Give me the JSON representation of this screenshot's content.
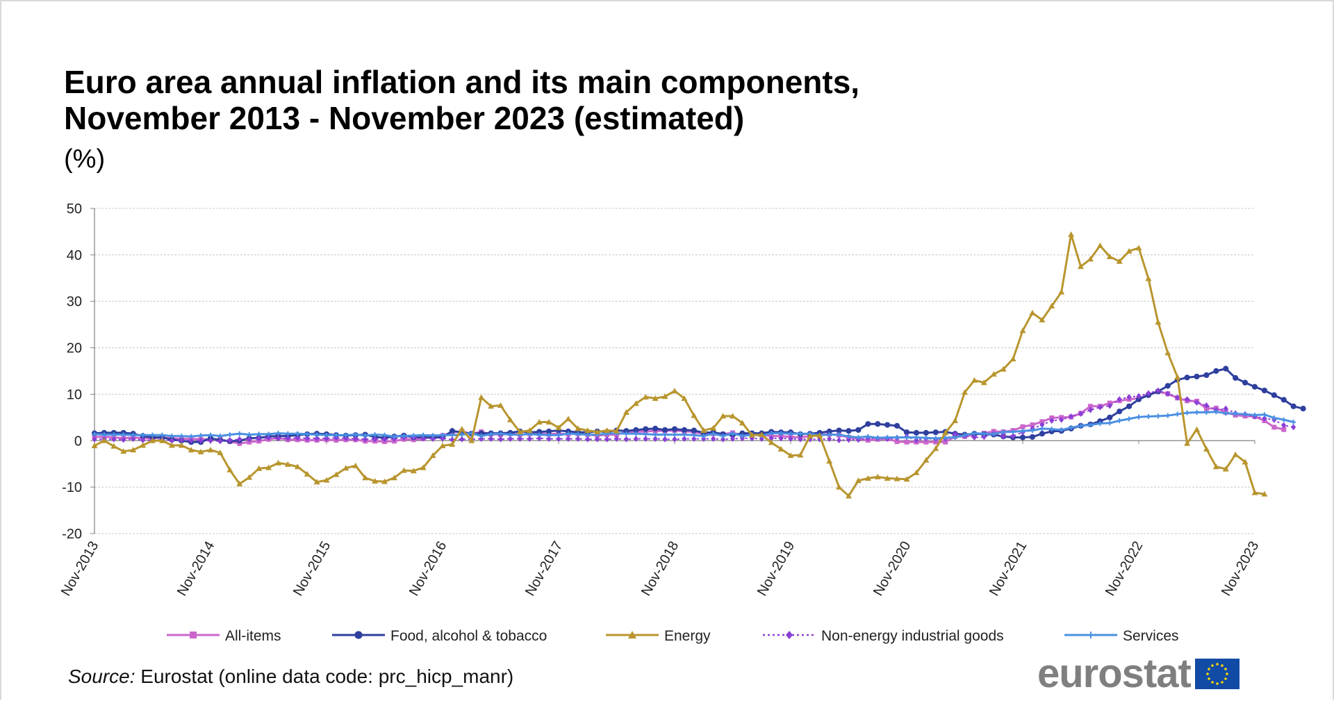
{
  "source_prefix": "Source:",
  "source_text": "Eurostat (online data code: prc_hicp_manr)",
  "logo_text": "eurostat",
  "chart_data": {
    "type": "line",
    "title": "Euro area annual inflation and its main components,",
    "title_line2": "November 2013 - November 2023 (estimated)",
    "subtitle": "(%)",
    "ylim": [
      -20,
      50
    ],
    "yticks": [
      -20,
      -10,
      0,
      10,
      20,
      30,
      40,
      50
    ],
    "x_tick_labels": [
      "Nov-2013",
      "Nov-2014",
      "Nov-2015",
      "Nov-2016",
      "Nov-2017",
      "Nov-2018",
      "Nov-2019",
      "Nov-2020",
      "Nov-2021",
      "Nov-2022",
      "Nov-2023"
    ],
    "x_points": 121,
    "grid": true,
    "legend_position": "bottom",
    "series": [
      {
        "name": "All-items",
        "color": "#cc66cc",
        "marker": "square",
        "dash": false,
        "values": [
          0.8,
          0.8,
          0.7,
          0.5,
          0.7,
          0.5,
          0.5,
          0.7,
          0.5,
          0.4,
          0.4,
          0.3,
          0.3,
          0.3,
          -0.2,
          -0.6,
          -0.3,
          -0.1,
          0.3,
          0.6,
          0.2,
          0.2,
          0.1,
          0.1,
          0.2,
          0.1,
          0.2,
          0.2,
          -0.1,
          -0.1,
          -0.2,
          -0.1,
          0.3,
          0.2,
          0.4,
          0.9,
          1.1,
          1.8,
          2.0,
          1.5,
          1.9,
          1.4,
          1.3,
          1.5,
          1.3,
          1.5,
          1.5,
          1.4,
          1.5,
          1.4,
          1.5,
          1.3,
          1.1,
          1.3,
          1.3,
          1.9,
          1.9,
          2.0,
          2.1,
          2.1,
          2.2,
          2.0,
          1.9,
          1.4,
          1.5,
          1.4,
          1.7,
          1.2,
          1.4,
          1.3,
          1.0,
          1.0,
          0.8,
          0.7,
          1.0,
          1.3,
          1.4,
          1.2,
          0.7,
          0.4,
          0.1,
          0.3,
          0.4,
          -0.2,
          -0.3,
          -0.3,
          -0.3,
          -0.3,
          -0.3,
          0.9,
          0.9,
          1.3,
          1.6,
          2.0,
          1.9,
          2.2,
          3.0,
          3.4,
          4.1,
          4.9,
          5.0,
          5.1,
          5.9,
          7.4,
          7.4,
          8.1,
          8.6,
          8.9,
          9.1,
          9.9,
          10.6,
          10.1,
          9.2,
          8.6,
          8.5,
          6.9,
          7.0,
          6.1,
          5.5,
          5.3,
          5.2,
          4.3,
          2.9,
          2.4
        ]
      },
      {
        "name": "Food, alcohol & tobacco",
        "color": "#2e3f9e",
        "marker": "circle",
        "dash": false,
        "values": [
          1.6,
          1.7,
          1.7,
          1.7,
          1.5,
          1.0,
          0.7,
          0.7,
          0.2,
          0.0,
          -0.3,
          -0.3,
          0.5,
          0.1,
          -0.1,
          0.0,
          0.5,
          0.6,
          0.9,
          1.0,
          1.0,
          1.2,
          1.4,
          1.5,
          1.4,
          1.2,
          1.1,
          1.2,
          1.3,
          0.8,
          0.6,
          0.9,
          1.1,
          0.7,
          0.7,
          0.7,
          0.7,
          2.1,
          1.8,
          1.5,
          1.6,
          1.6,
          1.6,
          1.7,
          2.0,
          1.8,
          1.9,
          2.0,
          2.2,
          2.0,
          1.8,
          1.8,
          2.0,
          1.9,
          2.2,
          2.1,
          2.3,
          2.5,
          2.6,
          2.3,
          2.5,
          2.3,
          2.2,
          1.7,
          1.8,
          1.4,
          1.2,
          1.6,
          1.6,
          1.6,
          1.9,
          1.8,
          1.8,
          1.4,
          1.5,
          1.7,
          2.0,
          2.2,
          2.1,
          2.3,
          3.6,
          3.6,
          3.4,
          3.2,
          1.8,
          1.7,
          1.7,
          1.8,
          1.9,
          1.5,
          1.3,
          1.5,
          1.4,
          1.3,
          0.9,
          0.7,
          0.7,
          0.8,
          1.5,
          2.0,
          2.1,
          2.6,
          3.2,
          3.5,
          4.2,
          5.0,
          6.3,
          7.4,
          8.9,
          9.8,
          10.6,
          11.8,
          13.1,
          13.6,
          13.8,
          14.1,
          15.0,
          15.5,
          13.5,
          12.5,
          11.6,
          10.8,
          9.8,
          8.8,
          7.4,
          6.9
        ]
      },
      {
        "name": "Energy",
        "color": "#b8952e",
        "marker": "triangle",
        "dash": false,
        "values": [
          -1.1,
          0.0,
          -1.2,
          -2.3,
          -2.0,
          -1.0,
          0.0,
          0.0,
          -1.0,
          -1.0,
          -2.0,
          -2.4,
          -2.0,
          -2.6,
          -6.3,
          -9.3,
          -7.9,
          -6.0,
          -5.8,
          -4.8,
          -5.1,
          -5.6,
          -7.2,
          -8.9,
          -8.5,
          -7.3,
          -5.9,
          -5.4,
          -8.0,
          -8.7,
          -8.8,
          -8.0,
          -6.4,
          -6.5,
          -5.8,
          -3.2,
          -1.1,
          -0.8,
          2.5,
          0.0,
          9.3,
          7.4,
          7.6,
          4.5,
          1.9,
          2.2,
          4.0,
          4.0,
          2.8,
          4.7,
          2.6,
          2.2,
          1.9,
          2.2,
          2.1,
          6.1,
          8.0,
          9.4,
          9.1,
          9.5,
          10.7,
          9.1,
          5.4,
          2.2,
          2.7,
          5.3,
          5.3,
          3.8,
          1.2,
          1.3,
          -0.4,
          -1.8,
          -3.2,
          -3.1,
          1.0,
          1.1,
          -4.4,
          -10.0,
          -11.9,
          -8.6,
          -8.1,
          -7.8,
          -8.1,
          -8.2,
          -8.3,
          -6.9,
          -4.2,
          -1.7,
          1.7,
          4.3,
          10.4,
          13.0,
          12.5,
          14.3,
          15.4,
          17.6,
          23.7,
          27.5,
          26.0,
          29.0,
          32.0,
          44.4,
          37.5,
          39.1,
          42.0,
          39.6,
          38.6,
          40.8,
          41.5,
          34.9,
          25.5,
          18.9,
          13.7,
          -0.6,
          2.4,
          -1.8,
          -5.6,
          -6.1,
          -3.0,
          -4.6,
          -11.2,
          -11.5
        ]
      },
      {
        "name": "Non-energy industrial goods",
        "color": "#8a3fd6",
        "marker": "diamond",
        "dash": true,
        "values": [
          0.3,
          0.3,
          0.3,
          0.2,
          0.4,
          0.1,
          0.1,
          0.2,
          0.0,
          0.1,
          0.0,
          0.0,
          0.0,
          -0.1,
          0.1,
          0.3,
          0.3,
          0.5,
          0.6,
          0.5,
          0.5,
          0.6,
          0.5,
          0.5,
          0.5,
          0.6,
          0.5,
          0.4,
          0.3,
          0.3,
          0.3,
          0.4,
          0.7,
          0.7,
          0.5,
          0.4,
          0.5,
          0.2,
          0.3,
          0.3,
          0.4,
          0.4,
          0.3,
          0.4,
          0.4,
          0.4,
          0.5,
          0.4,
          0.4,
          0.4,
          0.4,
          0.3,
          0.3,
          0.3,
          0.4,
          0.3,
          0.4,
          0.4,
          0.4,
          0.3,
          0.3,
          0.4,
          0.4,
          0.4,
          0.4,
          0.3,
          0.4,
          0.5,
          0.5,
          0.4,
          0.5,
          0.5,
          0.4,
          0.3,
          0.3,
          0.3,
          0.4,
          0.1,
          0.2,
          0.2,
          0.5,
          0.5,
          0.4,
          0.6,
          0.9,
          0.1,
          0.5,
          0.3,
          0.4,
          1.4,
          1.0,
          0.7,
          0.8,
          1.5,
          0.9,
          1.0,
          1.8,
          2.6,
          3.4,
          4.3,
          4.5,
          5.2,
          5.8,
          6.6,
          7.2,
          7.5,
          8.9,
          9.4,
          9.6,
          10.2,
          10.8,
          10.1,
          9.3,
          8.9,
          8.2,
          7.6,
          6.6,
          6.9,
          5.9,
          5.7,
          5.2,
          4.8,
          4.5,
          3.3,
          2.9
        ]
      },
      {
        "name": "Services",
        "color": "#4a90e2",
        "marker": "plus",
        "dash": false,
        "values": [
          1.4,
          1.3,
          1.3,
          1.3,
          1.2,
          1.2,
          1.2,
          1.2,
          1.0,
          1.0,
          0.9,
          1.1,
          1.2,
          1.0,
          1.3,
          1.5,
          1.3,
          1.4,
          1.4,
          1.6,
          1.5,
          1.5,
          1.4,
          1.3,
          1.2,
          1.2,
          1.2,
          1.3,
          1.1,
          1.3,
          1.2,
          0.9,
          1.0,
          1.1,
          1.2,
          1.1,
          1.2,
          1.2,
          1.3,
          1.6,
          1.0,
          1.4,
          1.5,
          1.3,
          1.3,
          1.4,
          1.3,
          1.2,
          1.2,
          1.5,
          1.4,
          1.3,
          1.3,
          1.5,
          1.6,
          1.5,
          1.5,
          1.4,
          1.3,
          1.3,
          1.3,
          1.3,
          1.2,
          1.0,
          1.5,
          1.0,
          1.6,
          1.0,
          1.3,
          1.1,
          1.6,
          1.6,
          1.5,
          1.5,
          1.5,
          1.2,
          1.3,
          1.3,
          0.9,
          0.7,
          0.9,
          0.6,
          0.7,
          0.7,
          0.7,
          0.7,
          0.6,
          0.5,
          0.6,
          0.7,
          1.2,
          1.6,
          1.5,
          1.4,
          1.9,
          1.9,
          2.1,
          2.2,
          2.6,
          2.5,
          2.3,
          2.8,
          3.2,
          3.4,
          3.7,
          3.8,
          4.3,
          4.7,
          5.1,
          5.2,
          5.3,
          5.4,
          5.7,
          6.0,
          6.1,
          6.1,
          6.2,
          5.9,
          5.8,
          5.7,
          5.5,
          5.6,
          4.9,
          4.5,
          4.0
        ]
      }
    ]
  }
}
